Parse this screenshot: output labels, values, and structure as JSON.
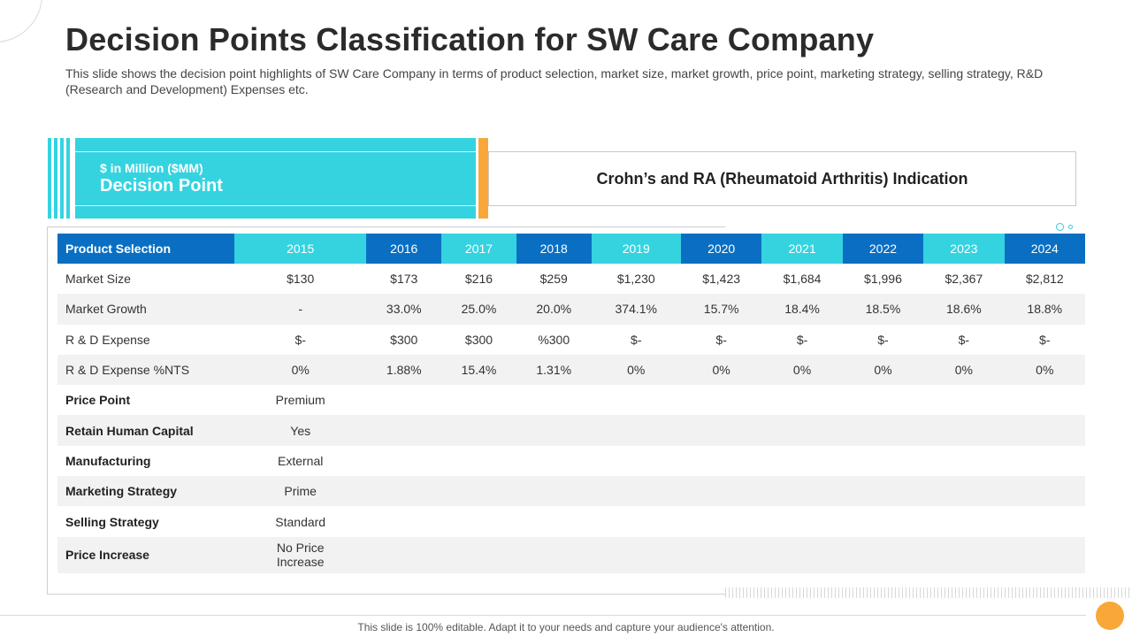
{
  "title": "Decision Points Classification for SW Care Company",
  "subtitle": "This slide shows the decision point highlights of SW Care Company in terms of product selection, market size, market growth, price point, marketing strategy, selling strategy, R&D (Research and Development) Expenses etc.",
  "header": {
    "unit": "$ in Million  ($MM)",
    "label": "Decision Point",
    "indication": "Crohn’s and RA (Rheumatoid Arthritis) Indication"
  },
  "table": {
    "first_header": "Product Selection",
    "years": [
      "2015",
      "2016",
      "2017",
      "2018",
      "2019",
      "2020",
      "2021",
      "2022",
      "2023",
      "2024"
    ],
    "numeric_rows": [
      {
        "label": "Market Size",
        "values": [
          "$130",
          "$173",
          "$216",
          "$259",
          "$1,230",
          "$1,423",
          "$1,684",
          "$1,996",
          "$2,367",
          "$2,812"
        ]
      },
      {
        "label": "Market Growth",
        "values": [
          "-",
          "33.0%",
          "25.0%",
          "20.0%",
          "374.1%",
          "15.7%",
          "18.4%",
          "18.5%",
          "18.6%",
          "18.8%"
        ]
      },
      {
        "label": "R & D Expense",
        "values": [
          "$-",
          "$300",
          "$300",
          "%300",
          "$-",
          "$-",
          "$-",
          "$-",
          "$-",
          "$-"
        ]
      },
      {
        "label": "R & D Expense %NTS",
        "values": [
          "0%",
          "1.88%",
          "15.4%",
          "1.31%",
          "0%",
          "0%",
          "0%",
          "0%",
          "0%",
          "0%"
        ]
      }
    ],
    "text_rows": [
      {
        "label": "Price Point",
        "value": "Premium"
      },
      {
        "label": "Retain Human Capital",
        "value": "Yes"
      },
      {
        "label": "Manufacturing",
        "value": "External"
      },
      {
        "label": "Marketing Strategy",
        "value": "Prime"
      },
      {
        "label": "Selling Strategy",
        "value": "Standard"
      },
      {
        "label": "Price Increase",
        "value": "No Price Increase"
      }
    ]
  },
  "footer": "This slide is 100% editable. Adapt it to your needs and capture your audience's attention.",
  "colors": {
    "dark_blue": "#0a6fc2",
    "cyan": "#35d3e0",
    "orange": "#f7a839"
  }
}
